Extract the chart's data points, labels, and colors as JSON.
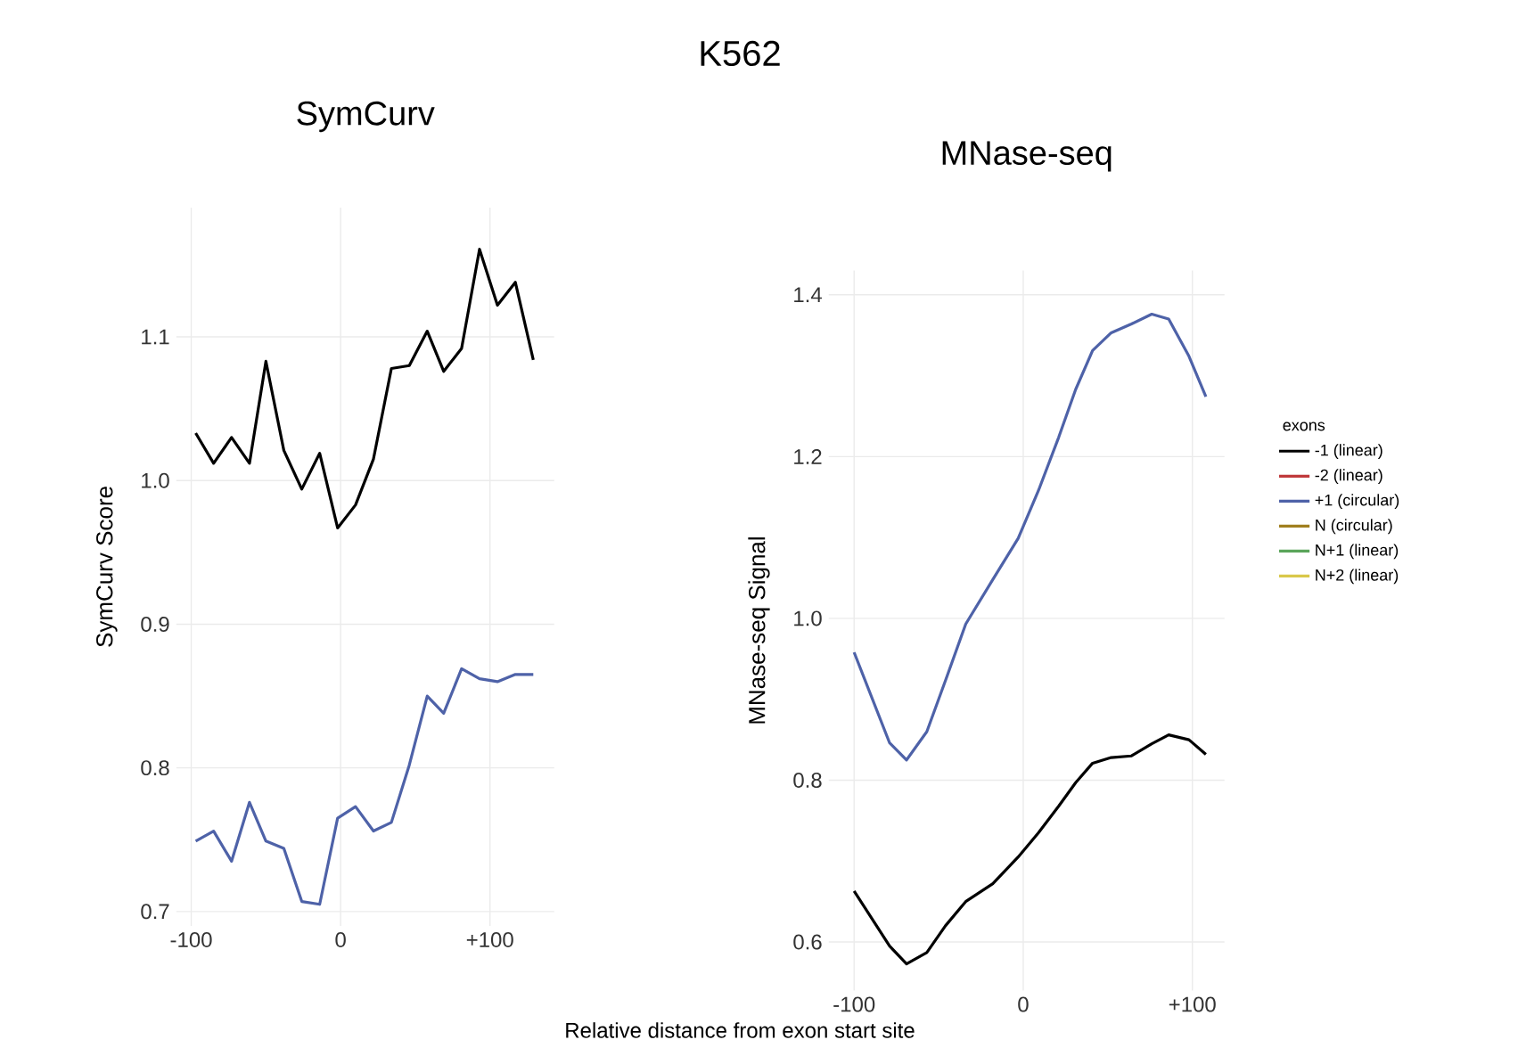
{
  "chart_data": [
    {
      "type": "line",
      "title": "SymCurv",
      "ylabel": "SymCurv Score",
      "xlabel": "Relative distance from exon start site",
      "annotations": [
        "K562"
      ],
      "x": [
        -97,
        -85,
        -73,
        -61,
        -50,
        -38,
        -26,
        -14,
        -2,
        10,
        22,
        34,
        46,
        58,
        69,
        81,
        93,
        105,
        117,
        129
      ],
      "series": [
        {
          "color": "#000000",
          "values": [
            1.033,
            1.012,
            1.03,
            1.012,
            1.083,
            1.021,
            0.994,
            1.019,
            0.967,
            0.983,
            1.015,
            1.078,
            1.08,
            1.104,
            1.076,
            1.092,
            1.161,
            1.122,
            1.138,
            1.084
          ]
        },
        {
          "color": "#4e62a8",
          "values": [
            0.749,
            0.756,
            0.735,
            0.776,
            0.749,
            0.744,
            0.707,
            0.705,
            0.765,
            0.773,
            0.756,
            0.762,
            0.802,
            0.85,
            0.838,
            0.869,
            0.862,
            0.86,
            0.865,
            0.865
          ]
        }
      ],
      "xlim": [
        -110,
        143
      ],
      "ylim": [
        0.69,
        1.19
      ],
      "xticks": [
        {
          "value": -100,
          "label": "-100"
        },
        {
          "value": 0,
          "label": "0"
        },
        {
          "value": 100,
          "label": "+100"
        }
      ],
      "yticks": [
        0.7,
        0.8,
        0.9,
        {
          "value": 1,
          "label": "1.0"
        },
        1.1
      ],
      "grid": true
    },
    {
      "type": "line",
      "title": "MNase-seq",
      "ylabel": "MNase-seq Signal",
      "legend_title": "exons",
      "legend": "right",
      "x": [
        -100,
        -79,
        -69,
        -57,
        -46,
        -34,
        -18,
        -3,
        9,
        21,
        31,
        41,
        52,
        64,
        76,
        86,
        98,
        108
      ],
      "series": [
        {
          "name": "-1 (linear)",
          "color": "#000000",
          "values": [
            0.663,
            0.595,
            0.573,
            0.587,
            0.62,
            0.65,
            0.672,
            0.705,
            0.735,
            0.768,
            0.797,
            0.821,
            0.828,
            0.83,
            0.845,
            0.856,
            0.85,
            0.832
          ]
        },
        {
          "name": "-2 (linear)",
          "color": "#c0393b",
          "values": [
            null,
            null,
            null,
            null,
            null,
            null,
            null,
            null,
            null,
            null,
            null,
            null,
            null,
            null,
            null,
            null,
            null,
            null
          ]
        },
        {
          "name": "+1 (circular)",
          "color": "#4e62a8",
          "values": [
            0.958,
            0.846,
            0.825,
            0.86,
            0.923,
            0.993,
            1.048,
            1.099,
            1.158,
            1.224,
            1.283,
            1.331,
            1.353,
            1.364,
            1.376,
            1.37,
            1.324,
            1.274
          ]
        },
        {
          "name": "N (circular)",
          "color": "#a07f1e",
          "values": [
            null,
            null,
            null,
            null,
            null,
            null,
            null,
            null,
            null,
            null,
            null,
            null,
            null,
            null,
            null,
            null,
            null,
            null
          ]
        },
        {
          "name": "N+1 (linear)",
          "color": "#5aa55a",
          "values": [
            null,
            null,
            null,
            null,
            null,
            null,
            null,
            null,
            null,
            null,
            null,
            null,
            null,
            null,
            null,
            null,
            null,
            null
          ]
        },
        {
          "name": "N+2 (linear)",
          "color": "#d9c84a",
          "values": [
            null,
            null,
            null,
            null,
            null,
            null,
            null,
            null,
            null,
            null,
            null,
            null,
            null,
            null,
            null,
            null,
            null,
            null
          ]
        }
      ],
      "xlim": [
        -115,
        119
      ],
      "ylim": [
        0.54,
        1.43
      ],
      "xticks": [
        {
          "value": -100,
          "label": "-100"
        },
        {
          "value": 0,
          "label": "0"
        },
        {
          "value": 100,
          "label": "+100"
        }
      ],
      "yticks": [
        0.6,
        0.8,
        {
          "value": 1,
          "label": "1.0"
        },
        1.2,
        1.4
      ],
      "grid": true
    }
  ]
}
